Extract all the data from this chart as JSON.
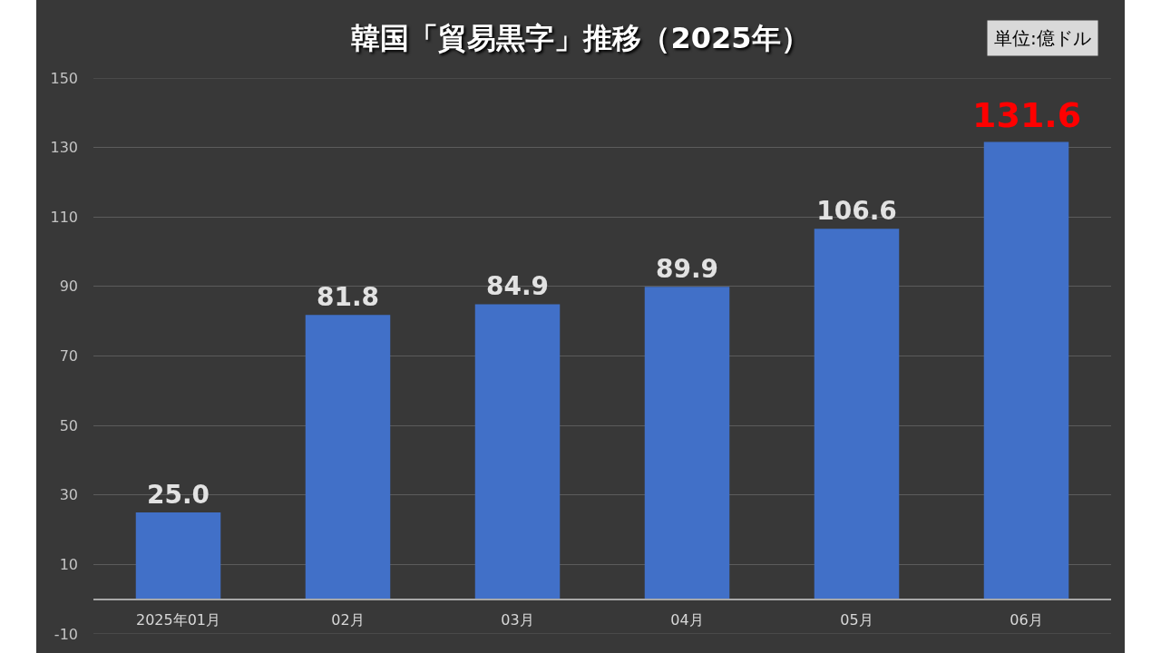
{
  "chart_data": {
    "type": "bar",
    "title": "韓国「貿易黒字」推移（2025年）",
    "annotations": [
      "単位:億ドル",
      {
        "text": "131.6",
        "x": "06月",
        "y": 131.6
      }
    ],
    "categories": [
      "2025年01月",
      "02月",
      "03月",
      "04月",
      "05月",
      "06月"
    ],
    "values": [
      25.0,
      81.8,
      84.9,
      89.9,
      106.6,
      131.6
    ],
    "color": "#4170c8",
    "value_labels": [
      "25.0",
      "81.8",
      "84.9",
      "89.9",
      "106.6",
      null
    ],
    "ylim": [
      -10,
      150
    ],
    "yticks": [
      -10,
      10,
      30,
      50,
      70,
      90,
      110,
      130,
      150
    ],
    "grid": "y"
  }
}
